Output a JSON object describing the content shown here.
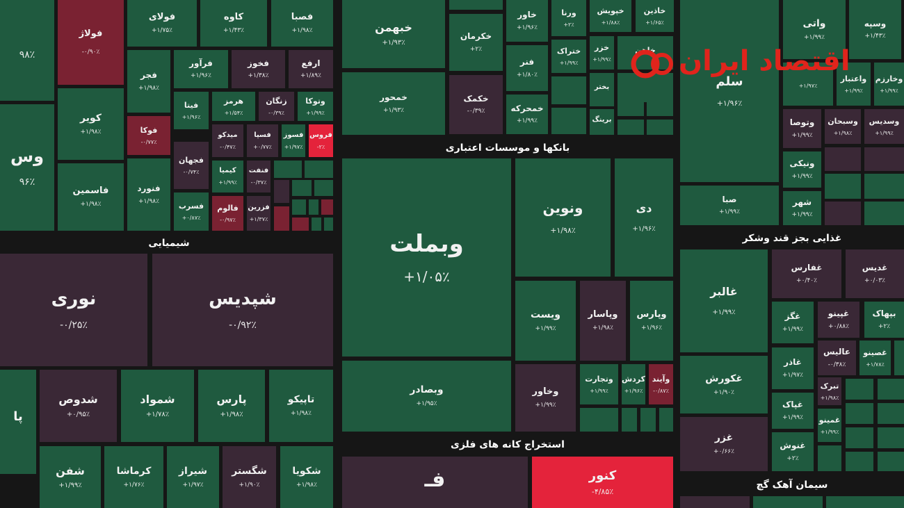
{
  "colors": {
    "up": "#1f5a3f",
    "down": "#3a2836",
    "down_red": "#7a2232",
    "bright_red": "#e4233b",
    "neutral": "#2a3a30"
  },
  "sectors": {
    "banks": "بانکها و موسسات اعتباری",
    "chemical": "شیمیایی",
    "mining": "استخراج کانه های فلزی",
    "food": "غذایی بجز قند وشکر",
    "cement": "سیمان آهک گچ"
  },
  "logo": {
    "text": "اقتصاد ایران",
    "icon": "iran-eghtesad-logo-icon"
  },
  "tiles": [
    {
      "id": "t1",
      "symbol": "",
      "change": "۹۸٪",
      "tone": "up"
    },
    {
      "id": "t2",
      "symbol": "فولاژ",
      "change": "-۰/۹۰٪",
      "tone": "down_red"
    },
    {
      "id": "t3",
      "symbol": "فولای",
      "change": "+۱/۷۵٪",
      "tone": "up"
    },
    {
      "id": "t4",
      "symbol": "کاوه",
      "change": "+۱/۴۳٪",
      "tone": "up"
    },
    {
      "id": "t5",
      "symbol": "فصبا",
      "change": "+۱/۹۸٪",
      "tone": "up"
    },
    {
      "id": "t6",
      "symbol": "خبهمن",
      "change": "+۱/۹۳٪",
      "tone": "up"
    },
    {
      "id": "t7",
      "symbol": "",
      "change": "",
      "tone": "up"
    },
    {
      "id": "t8",
      "symbol": "خکرمان",
      "change": "+۲٪",
      "tone": "up"
    },
    {
      "id": "t9",
      "symbol": "خاور",
      "change": "+۱/۹۶٪",
      "tone": "up"
    },
    {
      "id": "t10",
      "symbol": "ورنا",
      "change": "+۲٪",
      "tone": "up"
    },
    {
      "id": "t11",
      "symbol": "خپویش",
      "change": "+۱/۸۸٪",
      "tone": "up"
    },
    {
      "id": "t12",
      "symbol": "خاذین",
      "change": "+۱/۶۵٪",
      "tone": "up"
    },
    {
      "id": "t13",
      "symbol": "واتی",
      "change": "+۱/۹۹٪",
      "tone": "up"
    },
    {
      "id": "t14",
      "symbol": "وسپه",
      "change": "+۱/۴۳٪",
      "tone": "up"
    },
    {
      "id": "t15",
      "symbol": "وس",
      "change": "۹۶٪",
      "tone": "up"
    },
    {
      "id": "t16",
      "symbol": "فجر",
      "change": "+۱/۹۸٪",
      "tone": "up"
    },
    {
      "id": "t17",
      "symbol": "فرآور",
      "change": "+۱/۹۶٪",
      "tone": "up"
    },
    {
      "id": "t18",
      "symbol": "فخوز",
      "change": "+۱/۳۸٪",
      "tone": "down"
    },
    {
      "id": "t19",
      "symbol": "ارفع",
      "change": "+۱/۸۹٪",
      "tone": "down"
    },
    {
      "id": "t20",
      "symbol": "خمحور",
      "change": "+۱/۹۳٪",
      "tone": "up"
    },
    {
      "id": "t21",
      "symbol": "خکمک",
      "change": "-۰/۳۹٪",
      "tone": "down"
    },
    {
      "id": "t22",
      "symbol": "فنر",
      "change": "+۱/۸۰٪",
      "tone": "up"
    },
    {
      "id": "t23",
      "symbol": "ختراک",
      "change": "+۱/۹۹٪",
      "tone": "up"
    },
    {
      "id": "t24",
      "symbol": "خزر",
      "change": "+۱/۹۹٪",
      "tone": "up"
    },
    {
      "id": "t25",
      "symbol": "خاهن",
      "change": "",
      "tone": "up"
    },
    {
      "id": "t26",
      "symbol": "بختر",
      "change": "",
      "tone": "up"
    },
    {
      "id": "t27",
      "symbol": "سلم",
      "change": "+۱/۹۶٪",
      "tone": "up"
    },
    {
      "id": "t28",
      "symbol": "واعتبار",
      "change": "+۱/۹۹٪",
      "tone": "up"
    },
    {
      "id": "t29",
      "symbol": "وخارزم",
      "change": "+۱/۹۹٪",
      "tone": "up"
    },
    {
      "id": "t30",
      "symbol": "",
      "change": "+۱/۹۷٪",
      "tone": "up"
    },
    {
      "id": "t31",
      "symbol": "کویر",
      "change": "+۱/۹۸٪",
      "tone": "up"
    },
    {
      "id": "t32",
      "symbol": "فیتا",
      "change": "+۱/۹۶٪",
      "tone": "up"
    },
    {
      "id": "t33",
      "symbol": "هرمز",
      "change": "+۱/۵۴٪",
      "tone": "up"
    },
    {
      "id": "t34",
      "symbol": "زنگان",
      "change": "-۰/۳۹٪",
      "tone": "down"
    },
    {
      "id": "t35",
      "symbol": "وتوکا",
      "change": "+۱/۹۹٪",
      "tone": "up"
    },
    {
      "id": "t36",
      "symbol": "خمحرکه",
      "change": "+۱/۹۹٪",
      "tone": "up"
    },
    {
      "id": "t37",
      "symbol": "برینگ",
      "change": "",
      "tone": "up"
    },
    {
      "id": "t38",
      "symbol": "وتوصا",
      "change": "+۱/۹۹٪",
      "tone": "down"
    },
    {
      "id": "t39",
      "symbol": "وسبحان",
      "change": "+۱/۹۸٪",
      "tone": "down"
    },
    {
      "id": "t40",
      "symbol": "وسدیس",
      "change": "+۱/۹۹٪",
      "tone": "down"
    },
    {
      "id": "t41",
      "symbol": "فوکا",
      "change": "-۰/۷۷٪",
      "tone": "down_red"
    },
    {
      "id": "t42",
      "symbol": "میدکو",
      "change": "-۰/۴۷٪",
      "tone": "down"
    },
    {
      "id": "t43",
      "symbol": "فسپا",
      "change": "+۰/۷۷٪",
      "tone": "down"
    },
    {
      "id": "t44",
      "symbol": "فسوز",
      "change": "+۱/۹۷٪",
      "tone": "up"
    },
    {
      "id": "t45",
      "symbol": "فروس",
      "change": "-۲٪",
      "tone": "bright_red"
    },
    {
      "id": "t46",
      "symbol": "فجهان",
      "change": "-۰/۷۴٪",
      "tone": "down"
    },
    {
      "id": "t47",
      "symbol": "کیمیا",
      "change": "+۱/۹۹٪",
      "tone": "up"
    },
    {
      "id": "t48",
      "symbol": "فنفت",
      "change": "-۰/۳۷٪",
      "tone": "down"
    },
    {
      "id": "t49",
      "symbol": "ونیکی",
      "change": "+۱/۹۹٪",
      "tone": "up"
    },
    {
      "id": "t50",
      "symbol": "فاسمین",
      "change": "+۱/۹۸٪",
      "tone": "up"
    },
    {
      "id": "t51",
      "symbol": "فنورد",
      "change": "+۱/۹۸٪",
      "tone": "up"
    },
    {
      "id": "t52",
      "symbol": "فسرب",
      "change": "+۰/۸۷٪",
      "tone": "up"
    },
    {
      "id": "t53",
      "symbol": "فالوم",
      "change": "-۰/۹۷٪",
      "tone": "down_red"
    },
    {
      "id": "t54",
      "symbol": "فزرین",
      "change": "+۱/۳۷٪",
      "tone": "down"
    },
    {
      "id": "t55",
      "symbol": "وبملت",
      "change": "+۱/۰۵٪",
      "tone": "up"
    },
    {
      "id": "t56",
      "symbol": "ونوین",
      "change": "+۱/۹۸٪",
      "tone": "up"
    },
    {
      "id": "t57",
      "symbol": "دی",
      "change": "+۱/۹۶٪",
      "tone": "up"
    },
    {
      "id": "t58",
      "symbol": "صبا",
      "change": "+۱/۹۹٪",
      "tone": "up"
    },
    {
      "id": "t59",
      "symbol": "شهر",
      "change": "+۱/۹۹٪",
      "tone": "up"
    },
    {
      "id": "t60",
      "symbol": "نوری",
      "change": "-۰/۲۵٪",
      "tone": "down"
    },
    {
      "id": "t61",
      "symbol": "شپدیس",
      "change": "-۰/۹۲٪",
      "tone": "down"
    },
    {
      "id": "t62",
      "symbol": "غالبر",
      "change": "+۱/۹۹٪",
      "tone": "up"
    },
    {
      "id": "t63",
      "symbol": "غفارس",
      "change": "+۰/۴۰٪",
      "tone": "down"
    },
    {
      "id": "t64",
      "symbol": "غدیس",
      "change": "+۰/۰۳٪",
      "tone": "down"
    },
    {
      "id": "t65",
      "symbol": "ویست",
      "change": "+۱/۹۹٪",
      "tone": "up"
    },
    {
      "id": "t66",
      "symbol": "وپاسار",
      "change": "+۱/۹۸٪",
      "tone": "down"
    },
    {
      "id": "t67",
      "symbol": "وپارس",
      "change": "+۱/۹۶٪",
      "tone": "up"
    },
    {
      "id": "t68",
      "symbol": "غگز",
      "change": "+۱/۹۹٪",
      "tone": "up"
    },
    {
      "id": "t69",
      "symbol": "غپینو",
      "change": "+۰/۸۸٪",
      "tone": "down"
    },
    {
      "id": "t70",
      "symbol": "بپهاک",
      "change": "+۲٪",
      "tone": "up"
    },
    {
      "id": "t71",
      "symbol": "عالیس",
      "change": "-۰/۳۸٪",
      "tone": "down"
    },
    {
      "id": "t72",
      "symbol": "غصینو",
      "change": "+۱/۷۸٪",
      "tone": "up"
    },
    {
      "id": "t73",
      "symbol": "پا",
      "change": "",
      "tone": "up"
    },
    {
      "id": "t74",
      "symbol": "شدوص",
      "change": "+۰/۹۵٪",
      "tone": "down"
    },
    {
      "id": "t75",
      "symbol": "شمواد",
      "change": "+۱/۷۸٪",
      "tone": "up"
    },
    {
      "id": "t76",
      "symbol": "پارس",
      "change": "+۱/۹۸٪",
      "tone": "up"
    },
    {
      "id": "t77",
      "symbol": "تاپیکو",
      "change": "+۱/۹۸٪",
      "tone": "up"
    },
    {
      "id": "t78",
      "symbol": "وبصادر",
      "change": "+۱/۹۵٪",
      "tone": "up"
    },
    {
      "id": "t79",
      "symbol": "وخاور",
      "change": "+۱/۹۹٪",
      "tone": "down"
    },
    {
      "id": "t80",
      "symbol": "وتجارت",
      "change": "+۱/۹۹٪",
      "tone": "up"
    },
    {
      "id": "t81",
      "symbol": "کردش",
      "change": "+۱/۹۶٪",
      "tone": "up"
    },
    {
      "id": "t82",
      "symbol": "وآیند",
      "change": "-۰/۸۷٪",
      "tone": "down_red"
    },
    {
      "id": "t83",
      "symbol": "غکورش",
      "change": "+۱/۹۰٪",
      "tone": "up"
    },
    {
      "id": "t84",
      "symbol": "غاذر",
      "change": "+۱/۹۷٪",
      "tone": "up"
    },
    {
      "id": "t85",
      "symbol": "تبرک",
      "change": "+۱/۹۸٪",
      "tone": "down"
    },
    {
      "id": "t86",
      "symbol": "غپاک",
      "change": "+۱/۹۹٪",
      "tone": "up"
    },
    {
      "id": "t87",
      "symbol": "غمینو",
      "change": "+۱/۹۹٪",
      "tone": "up"
    },
    {
      "id": "t88",
      "symbol": "غزر",
      "change": "+۰/۶۶٪",
      "tone": "down"
    },
    {
      "id": "t89",
      "symbol": "غنوش",
      "change": "+۲٪",
      "tone": "up"
    },
    {
      "id": "t90",
      "symbol": "شفن",
      "change": "+۱/۹۹٪",
      "tone": "up"
    },
    {
      "id": "t91",
      "symbol": "کرماشا",
      "change": "+۱/۷۶٪",
      "tone": "up"
    },
    {
      "id": "t92",
      "symbol": "شیراز",
      "change": "+۱/۹۷٪",
      "tone": "up"
    },
    {
      "id": "t93",
      "symbol": "شگستر",
      "change": "+۱/۹۰٪",
      "tone": "down"
    },
    {
      "id": "t94",
      "symbol": "شکویا",
      "change": "+۱/۹۸٪",
      "tone": "up"
    },
    {
      "id": "t95",
      "symbol": "فـ",
      "change": "",
      "tone": "down"
    },
    {
      "id": "t96",
      "symbol": "کنور",
      "change": "-۴/۸۵٪",
      "tone": "bright_red"
    }
  ]
}
